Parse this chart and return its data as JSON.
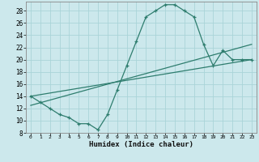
{
  "xlabel": "Humidex (Indice chaleur)",
  "bg_color": "#cce8ec",
  "line_color": "#2e7d6e",
  "grid_color": "#aad4d8",
  "xlim": [
    -0.5,
    23.5
  ],
  "ylim": [
    8,
    29.5
  ],
  "xticks": [
    0,
    1,
    2,
    3,
    4,
    5,
    6,
    7,
    8,
    9,
    10,
    11,
    12,
    13,
    14,
    15,
    16,
    17,
    18,
    19,
    20,
    21,
    22,
    23
  ],
  "yticks": [
    8,
    10,
    12,
    14,
    16,
    18,
    20,
    22,
    24,
    26,
    28
  ],
  "curve1_x": [
    0,
    1,
    2,
    3,
    4,
    5,
    6,
    7,
    8,
    9,
    10,
    11,
    12,
    13,
    14,
    15,
    16,
    17,
    18,
    19,
    20,
    21,
    22,
    23
  ],
  "curve1_y": [
    14,
    13,
    12,
    11,
    10.5,
    9.5,
    9.5,
    8.5,
    11,
    15,
    19,
    23,
    27,
    28,
    29,
    29,
    28,
    27,
    22.5,
    19,
    21.5,
    20,
    20,
    20
  ],
  "line1_x": [
    0,
    23
  ],
  "line1_y": [
    14.0,
    20.0
  ],
  "line2_x": [
    0,
    23
  ],
  "line2_y": [
    12.5,
    22.5
  ]
}
